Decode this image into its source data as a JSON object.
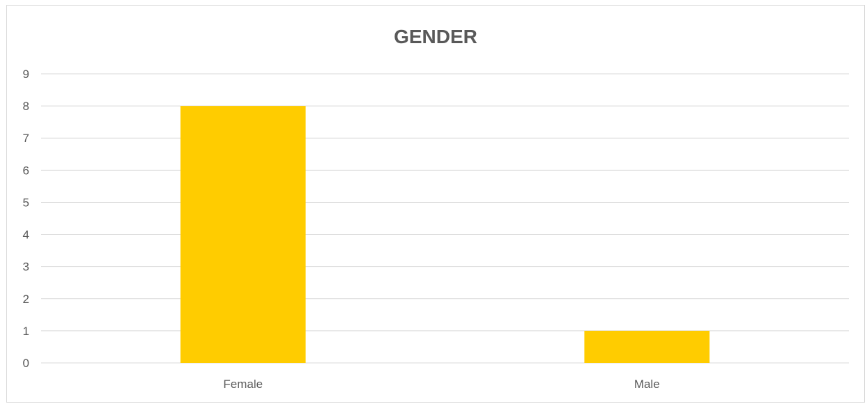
{
  "chart_data": {
    "type": "bar",
    "title": "GENDER",
    "xlabel": "",
    "ylabel": "",
    "categories": [
      "Female",
      "Male"
    ],
    "values": [
      8,
      1
    ],
    "yticks": [
      "0",
      "1",
      "2",
      "3",
      "4",
      "5",
      "6",
      "7",
      "8",
      "9"
    ],
    "ylim": [
      0,
      9
    ],
    "grid": true,
    "legend": "none",
    "colors": {
      "bar": "#FFCC00",
      "grid": "#D9D9D9",
      "text": "#595959",
      "border": "#D9D9D9"
    }
  }
}
